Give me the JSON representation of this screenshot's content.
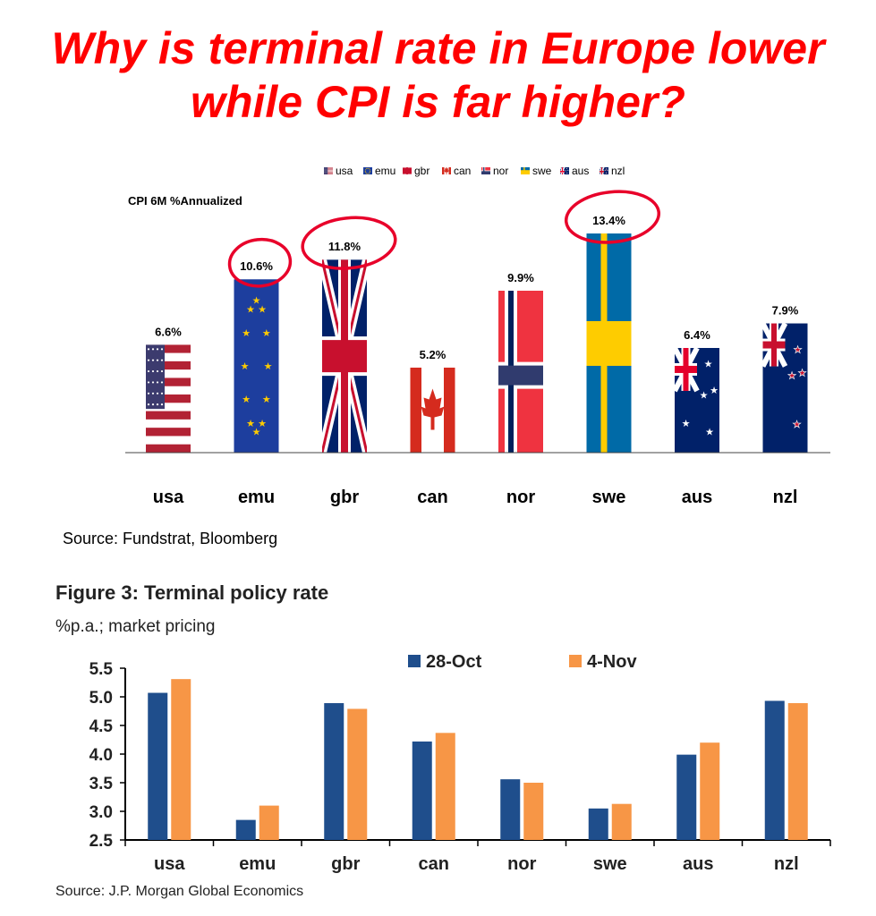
{
  "headline": {
    "line1": "Why is terminal rate in Europe lower",
    "line2": "while CPI is far higher?"
  },
  "colors": {
    "headline": "#ff0000",
    "annotation_circle": "#e8002a",
    "series_28oct": "#1f4e8c",
    "series_4nov": "#f79646"
  },
  "chart1": {
    "source": "Source: Fundstrat, Bloomberg",
    "circled_categories": [
      "emu",
      "gbr",
      "swe"
    ],
    "chart_data": {
      "type": "bar",
      "title": "CPI 6M %Annualized",
      "categories": [
        "usa",
        "emu",
        "gbr",
        "can",
        "nor",
        "swe",
        "aus",
        "nzl"
      ],
      "values": [
        6.6,
        10.6,
        11.8,
        5.2,
        9.9,
        13.4,
        6.4,
        7.9
      ],
      "data_labels": [
        "6.6%",
        "10.6%",
        "11.8%",
        "5.2%",
        "9.9%",
        "13.4%",
        "6.4%",
        "7.9%"
      ],
      "legend": [
        "usa",
        "emu",
        "gbr",
        "can",
        "nor",
        "swe",
        "aus",
        "nzl"
      ],
      "legend_position": "top-center",
      "fill_style": "national-flags",
      "ylim": [
        0,
        14
      ],
      "grid": false
    }
  },
  "chart2": {
    "figure_title": "Figure 3: Terminal policy rate",
    "subtitle": "%p.a.; market pricing",
    "source": "Source: J.P. Morgan Global Economics",
    "chart_data": {
      "type": "bar",
      "categories": [
        "usa",
        "emu",
        "gbr",
        "can",
        "nor",
        "swe",
        "aus",
        "nzl"
      ],
      "series": [
        {
          "name": "28-Oct",
          "values": [
            5.07,
            2.85,
            4.89,
            4.22,
            3.56,
            3.05,
            3.99,
            4.93
          ]
        },
        {
          "name": "4-Nov",
          "values": [
            5.31,
            3.1,
            4.79,
            4.37,
            3.5,
            3.13,
            4.2,
            4.89
          ]
        }
      ],
      "yticks": [
        "5.5",
        "5.0",
        "4.5",
        "4.0",
        "3.5",
        "3.0",
        "2.5"
      ],
      "ylim": [
        2.5,
        5.5
      ],
      "legend_position": "top",
      "grid": false
    }
  }
}
